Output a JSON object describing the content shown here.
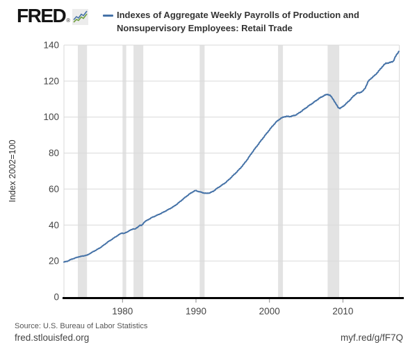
{
  "header": {
    "brand": "FRED",
    "registered_mark": "®",
    "legend": {
      "label_line1": "Indexes of Aggregate Weekly Payrolls of Production and",
      "label_line2": "Nonsupervisory Employees: Retail Trade"
    }
  },
  "chart_data": {
    "type": "line",
    "title": "Indexes of Aggregate Weekly Payrolls of Production and Nonsupervisory Employees: Retail Trade",
    "ylabel": "Index 2002=100",
    "xlabel": "",
    "xlim": [
      1972.03,
      2017.67
    ],
    "ylim": [
      0,
      140
    ],
    "y_ticks": [
      0,
      20,
      40,
      60,
      80,
      100,
      120,
      140
    ],
    "x_ticks": [
      1980,
      1990,
      2000,
      2010
    ],
    "grid": true,
    "legend_position": "top",
    "colors": {
      "line": "#4572a7",
      "recession_band": "#e3e3e3",
      "gridline": "#d9d9d9",
      "axis_line": "#000000",
      "tick_label": "#444444"
    },
    "recession_bands": [
      [
        1973.92,
        1975.17
      ],
      [
        1980.0,
        1980.5
      ],
      [
        1981.5,
        1982.83
      ],
      [
        1990.5,
        1991.17
      ],
      [
        2001.17,
        2001.83
      ],
      [
        2007.92,
        2009.5
      ]
    ],
    "series": [
      {
        "name": "Indexes of Aggregate Weekly Payrolls of Production and Nonsupervisory Employees: Retail Trade",
        "units": "Index 2002=100",
        "points": [
          [
            1972.0,
            19.4
          ],
          [
            1972.5,
            19.9
          ],
          [
            1973.0,
            20.9
          ],
          [
            1973.5,
            21.6
          ],
          [
            1974.0,
            22.3
          ],
          [
            1974.6,
            22.8
          ],
          [
            1975.2,
            23.3
          ],
          [
            1976.0,
            25.2
          ],
          [
            1976.5,
            26.3
          ],
          [
            1977.0,
            27.5
          ],
          [
            1977.5,
            29.0
          ],
          [
            1978.0,
            30.6
          ],
          [
            1978.5,
            31.9
          ],
          [
            1979.0,
            33.3
          ],
          [
            1979.5,
            34.6
          ],
          [
            1979.9,
            35.6
          ],
          [
            1980.2,
            35.3
          ],
          [
            1980.5,
            35.9
          ],
          [
            1981.0,
            37.0
          ],
          [
            1981.5,
            38.0
          ],
          [
            1981.7,
            37.7
          ],
          [
            1982.0,
            38.6
          ],
          [
            1982.35,
            39.9
          ],
          [
            1982.6,
            39.7
          ],
          [
            1983.0,
            41.8
          ],
          [
            1983.5,
            43.0
          ],
          [
            1984.0,
            44.2
          ],
          [
            1984.5,
            45.1
          ],
          [
            1985.0,
            46.0
          ],
          [
            1985.5,
            47.0
          ],
          [
            1986.0,
            48.1
          ],
          [
            1986.5,
            49.2
          ],
          [
            1987.0,
            50.4
          ],
          [
            1987.5,
            51.9
          ],
          [
            1988.0,
            53.6
          ],
          [
            1988.5,
            55.3
          ],
          [
            1989.0,
            56.9
          ],
          [
            1989.5,
            58.3
          ],
          [
            1989.92,
            59.2
          ],
          [
            1990.4,
            58.6
          ],
          [
            1991.0,
            57.9
          ],
          [
            1991.4,
            57.6
          ],
          [
            1991.9,
            57.9
          ],
          [
            1992.4,
            58.9
          ],
          [
            1992.8,
            60.2
          ],
          [
            1993.5,
            62.1
          ],
          [
            1994.0,
            63.5
          ],
          [
            1994.5,
            65.3
          ],
          [
            1995.0,
            67.3
          ],
          [
            1995.5,
            69.3
          ],
          [
            1996.0,
            71.4
          ],
          [
            1996.5,
            73.8
          ],
          [
            1997.0,
            76.5
          ],
          [
            1997.6,
            80.1
          ],
          [
            1998.0,
            82.3
          ],
          [
            1998.5,
            85.0
          ],
          [
            1999.0,
            87.7
          ],
          [
            1999.5,
            90.3
          ],
          [
            2000.0,
            92.9
          ],
          [
            2000.5,
            95.4
          ],
          [
            2001.0,
            97.6
          ],
          [
            2001.5,
            99.2
          ],
          [
            2002.0,
            100.2
          ],
          [
            2002.4,
            100.4
          ],
          [
            2002.8,
            100.3
          ],
          [
            2003.2,
            100.7
          ],
          [
            2003.6,
            101.2
          ],
          [
            2004.0,
            102.2
          ],
          [
            2004.5,
            103.7
          ],
          [
            2005.0,
            105.2
          ],
          [
            2005.5,
            106.7
          ],
          [
            2006.0,
            108.1
          ],
          [
            2006.5,
            109.6
          ],
          [
            2007.0,
            111.0
          ],
          [
            2007.5,
            112.1
          ],
          [
            2007.92,
            112.7
          ],
          [
            2008.3,
            111.9
          ],
          [
            2008.7,
            109.8
          ],
          [
            2009.0,
            107.6
          ],
          [
            2009.35,
            105.4
          ],
          [
            2009.6,
            104.8
          ],
          [
            2010.0,
            105.9
          ],
          [
            2010.5,
            107.7
          ],
          [
            2011.0,
            109.7
          ],
          [
            2011.5,
            111.9
          ],
          [
            2011.9,
            113.3
          ],
          [
            2012.3,
            113.6
          ],
          [
            2012.7,
            114.4
          ],
          [
            2013.0,
            115.9
          ],
          [
            2013.45,
            119.9
          ],
          [
            2013.8,
            121.4
          ],
          [
            2014.4,
            123.4
          ],
          [
            2015.0,
            126.2
          ],
          [
            2015.5,
            128.7
          ],
          [
            2015.85,
            129.9
          ],
          [
            2016.4,
            130.3
          ],
          [
            2016.85,
            131.0
          ],
          [
            2017.15,
            133.6
          ],
          [
            2017.4,
            135.2
          ],
          [
            2017.67,
            136.9
          ]
        ]
      }
    ]
  },
  "footer": {
    "source": "Source: U.S. Bureau of Labor Statistics",
    "site": "fred.stlouisfed.org",
    "short_url": "myf.red/g/fF7Q"
  }
}
